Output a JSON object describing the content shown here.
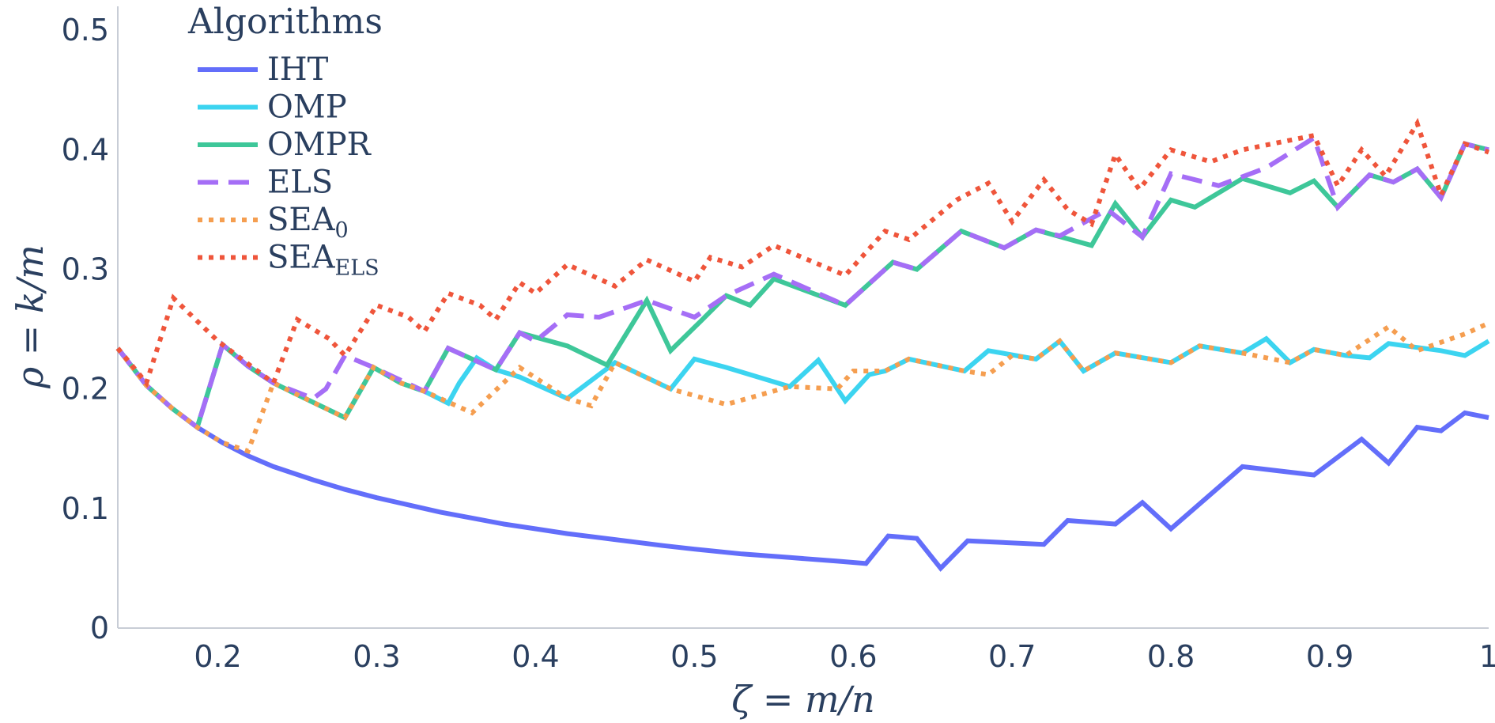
{
  "chart_data": {
    "type": "line",
    "title": "",
    "xlabel": "ζ = m/n",
    "ylabel": "ρ = k/m",
    "xlim": [
      0.137,
      1.0
    ],
    "ylim": [
      0,
      0.52
    ],
    "x_ticks": [
      0.2,
      0.3,
      0.4,
      0.5,
      0.6,
      0.7,
      0.8,
      0.9,
      1.0
    ],
    "x_tick_labels": [
      "0.2",
      "0.3",
      "0.4",
      "0.5",
      "0.6",
      "0.7",
      "0.8",
      "0.9",
      "1"
    ],
    "y_ticks": [
      0,
      0.1,
      0.2,
      0.3,
      0.4,
      0.5
    ],
    "y_tick_labels": [
      "0",
      "0.1",
      "0.2",
      "0.3",
      "0.4",
      "0.5"
    ],
    "grid": false,
    "legend": {
      "title": "Algorithms",
      "placement": "top-left"
    },
    "series": [
      {
        "name": "IHT",
        "name_sub": "",
        "color": "#636efa",
        "dash": "solid",
        "points": [
          [
            0.137,
            0.234
          ],
          [
            0.155,
            0.203
          ],
          [
            0.171,
            0.184
          ],
          [
            0.187,
            0.168
          ],
          [
            0.203,
            0.155
          ],
          [
            0.219,
            0.144
          ],
          [
            0.235,
            0.135
          ],
          [
            0.26,
            0.124
          ],
          [
            0.28,
            0.116
          ],
          [
            0.3,
            0.109
          ],
          [
            0.32,
            0.103
          ],
          [
            0.34,
            0.097
          ],
          [
            0.36,
            0.092
          ],
          [
            0.38,
            0.087
          ],
          [
            0.4,
            0.083
          ],
          [
            0.42,
            0.079
          ],
          [
            0.45,
            0.074
          ],
          [
            0.48,
            0.069
          ],
          [
            0.5,
            0.066
          ],
          [
            0.53,
            0.062
          ],
          [
            0.56,
            0.059
          ],
          [
            0.59,
            0.056
          ],
          [
            0.608,
            0.054
          ],
          [
            0.622,
            0.077
          ],
          [
            0.64,
            0.075
          ],
          [
            0.655,
            0.05
          ],
          [
            0.672,
            0.073
          ],
          [
            0.72,
            0.07
          ],
          [
            0.735,
            0.09
          ],
          [
            0.765,
            0.087
          ],
          [
            0.782,
            0.105
          ],
          [
            0.8,
            0.083
          ],
          [
            0.845,
            0.135
          ],
          [
            0.89,
            0.128
          ],
          [
            0.92,
            0.158
          ],
          [
            0.937,
            0.138
          ],
          [
            0.955,
            0.168
          ],
          [
            0.97,
            0.165
          ],
          [
            0.985,
            0.18
          ],
          [
            1.0,
            0.176
          ]
        ]
      },
      {
        "name": "OMP",
        "name_sub": "",
        "color": "#3cd4f0",
        "dash": "solid",
        "points": [
          [
            0.137,
            0.234
          ],
          [
            0.155,
            0.203
          ],
          [
            0.171,
            0.184
          ],
          [
            0.187,
            0.168
          ],
          [
            0.203,
            0.237
          ],
          [
            0.219,
            0.219
          ],
          [
            0.235,
            0.205
          ],
          [
            0.255,
            0.192
          ],
          [
            0.28,
            0.176
          ],
          [
            0.298,
            0.218
          ],
          [
            0.315,
            0.205
          ],
          [
            0.33,
            0.198
          ],
          [
            0.345,
            0.188
          ],
          [
            0.352,
            0.205
          ],
          [
            0.363,
            0.226
          ],
          [
            0.375,
            0.216
          ],
          [
            0.39,
            0.21
          ],
          [
            0.42,
            0.192
          ],
          [
            0.45,
            0.222
          ],
          [
            0.485,
            0.2
          ],
          [
            0.5,
            0.225
          ],
          [
            0.52,
            0.218
          ],
          [
            0.56,
            0.202
          ],
          [
            0.578,
            0.224
          ],
          [
            0.595,
            0.19
          ],
          [
            0.61,
            0.212
          ],
          [
            0.62,
            0.215
          ],
          [
            0.635,
            0.225
          ],
          [
            0.67,
            0.215
          ],
          [
            0.685,
            0.232
          ],
          [
            0.715,
            0.225
          ],
          [
            0.73,
            0.24
          ],
          [
            0.745,
            0.215
          ],
          [
            0.765,
            0.23
          ],
          [
            0.8,
            0.222
          ],
          [
            0.818,
            0.236
          ],
          [
            0.845,
            0.23
          ],
          [
            0.86,
            0.242
          ],
          [
            0.875,
            0.222
          ],
          [
            0.89,
            0.233
          ],
          [
            0.91,
            0.228
          ],
          [
            0.925,
            0.226
          ],
          [
            0.937,
            0.238
          ],
          [
            0.97,
            0.232
          ],
          [
            0.985,
            0.228
          ],
          [
            1.0,
            0.24
          ]
        ]
      },
      {
        "name": "OMPR",
        "name_sub": "",
        "color": "#3ec799",
        "dash": "solid",
        "points": [
          [
            0.137,
            0.234
          ],
          [
            0.155,
            0.203
          ],
          [
            0.171,
            0.184
          ],
          [
            0.187,
            0.168
          ],
          [
            0.203,
            0.237
          ],
          [
            0.219,
            0.219
          ],
          [
            0.235,
            0.205
          ],
          [
            0.255,
            0.192
          ],
          [
            0.28,
            0.176
          ],
          [
            0.298,
            0.218
          ],
          [
            0.315,
            0.205
          ],
          [
            0.33,
            0.198
          ],
          [
            0.345,
            0.234
          ],
          [
            0.375,
            0.216
          ],
          [
            0.39,
            0.247
          ],
          [
            0.42,
            0.236
          ],
          [
            0.445,
            0.22
          ],
          [
            0.47,
            0.274
          ],
          [
            0.485,
            0.232
          ],
          [
            0.505,
            0.258
          ],
          [
            0.52,
            0.278
          ],
          [
            0.535,
            0.27
          ],
          [
            0.55,
            0.292
          ],
          [
            0.595,
            0.27
          ],
          [
            0.625,
            0.306
          ],
          [
            0.64,
            0.3
          ],
          [
            0.668,
            0.332
          ],
          [
            0.695,
            0.318
          ],
          [
            0.715,
            0.333
          ],
          [
            0.75,
            0.32
          ],
          [
            0.765,
            0.355
          ],
          [
            0.782,
            0.327
          ],
          [
            0.8,
            0.358
          ],
          [
            0.815,
            0.352
          ],
          [
            0.845,
            0.376
          ],
          [
            0.875,
            0.364
          ],
          [
            0.89,
            0.374
          ],
          [
            0.905,
            0.352
          ],
          [
            0.925,
            0.379
          ],
          [
            0.94,
            0.373
          ],
          [
            0.955,
            0.384
          ],
          [
            0.97,
            0.36
          ],
          [
            0.985,
            0.405
          ],
          [
            1.0,
            0.4
          ]
        ]
      },
      {
        "name": "ELS",
        "name_sub": "",
        "color": "#a56ef6",
        "dash": "dashed",
        "points": [
          [
            0.137,
            0.234
          ],
          [
            0.155,
            0.203
          ],
          [
            0.171,
            0.184
          ],
          [
            0.187,
            0.168
          ],
          [
            0.203,
            0.237
          ],
          [
            0.219,
            0.219
          ],
          [
            0.235,
            0.205
          ],
          [
            0.26,
            0.192
          ],
          [
            0.268,
            0.2
          ],
          [
            0.28,
            0.228
          ],
          [
            0.298,
            0.218
          ],
          [
            0.33,
            0.198
          ],
          [
            0.345,
            0.234
          ],
          [
            0.375,
            0.216
          ],
          [
            0.39,
            0.247
          ],
          [
            0.4,
            0.24
          ],
          [
            0.42,
            0.262
          ],
          [
            0.44,
            0.26
          ],
          [
            0.47,
            0.274
          ],
          [
            0.5,
            0.26
          ],
          [
            0.52,
            0.278
          ],
          [
            0.55,
            0.296
          ],
          [
            0.595,
            0.27
          ],
          [
            0.625,
            0.306
          ],
          [
            0.64,
            0.3
          ],
          [
            0.668,
            0.332
          ],
          [
            0.695,
            0.318
          ],
          [
            0.715,
            0.333
          ],
          [
            0.73,
            0.328
          ],
          [
            0.76,
            0.35
          ],
          [
            0.782,
            0.327
          ],
          [
            0.8,
            0.38
          ],
          [
            0.83,
            0.37
          ],
          [
            0.86,
            0.385
          ],
          [
            0.89,
            0.41
          ],
          [
            0.905,
            0.352
          ],
          [
            0.925,
            0.379
          ],
          [
            0.94,
            0.373
          ],
          [
            0.955,
            0.384
          ],
          [
            0.97,
            0.36
          ],
          [
            0.985,
            0.405
          ],
          [
            1.0,
            0.4
          ]
        ]
      },
      {
        "name": "SEA",
        "name_sub": "0",
        "color": "#f59e50",
        "dash": "dotted",
        "points": [
          [
            0.137,
            0.234
          ],
          [
            0.155,
            0.203
          ],
          [
            0.171,
            0.184
          ],
          [
            0.187,
            0.168
          ],
          [
            0.203,
            0.155
          ],
          [
            0.219,
            0.148
          ],
          [
            0.235,
            0.205
          ],
          [
            0.255,
            0.192
          ],
          [
            0.28,
            0.176
          ],
          [
            0.298,
            0.218
          ],
          [
            0.315,
            0.205
          ],
          [
            0.33,
            0.198
          ],
          [
            0.36,
            0.18
          ],
          [
            0.39,
            0.218
          ],
          [
            0.42,
            0.192
          ],
          [
            0.435,
            0.186
          ],
          [
            0.45,
            0.222
          ],
          [
            0.485,
            0.2
          ],
          [
            0.52,
            0.187
          ],
          [
            0.56,
            0.202
          ],
          [
            0.59,
            0.2
          ],
          [
            0.6,
            0.215
          ],
          [
            0.62,
            0.215
          ],
          [
            0.635,
            0.225
          ],
          [
            0.67,
            0.215
          ],
          [
            0.685,
            0.212
          ],
          [
            0.7,
            0.228
          ],
          [
            0.715,
            0.225
          ],
          [
            0.73,
            0.24
          ],
          [
            0.745,
            0.215
          ],
          [
            0.765,
            0.23
          ],
          [
            0.8,
            0.222
          ],
          [
            0.818,
            0.236
          ],
          [
            0.845,
            0.23
          ],
          [
            0.875,
            0.222
          ],
          [
            0.89,
            0.233
          ],
          [
            0.91,
            0.228
          ],
          [
            0.937,
            0.252
          ],
          [
            0.955,
            0.232
          ],
          [
            0.985,
            0.246
          ],
          [
            1.0,
            0.255
          ]
        ]
      },
      {
        "name": "SEA",
        "name_sub": "ELS",
        "color": "#ef553b",
        "dash": "dotted",
        "points": [
          [
            0.137,
            0.234
          ],
          [
            0.155,
            0.205
          ],
          [
            0.172,
            0.276
          ],
          [
            0.2,
            0.24
          ],
          [
            0.22,
            0.22
          ],
          [
            0.235,
            0.205
          ],
          [
            0.25,
            0.258
          ],
          [
            0.27,
            0.242
          ],
          [
            0.28,
            0.228
          ],
          [
            0.3,
            0.27
          ],
          [
            0.32,
            0.26
          ],
          [
            0.33,
            0.248
          ],
          [
            0.345,
            0.28
          ],
          [
            0.365,
            0.27
          ],
          [
            0.375,
            0.258
          ],
          [
            0.39,
            0.289
          ],
          [
            0.4,
            0.28
          ],
          [
            0.42,
            0.304
          ],
          [
            0.45,
            0.286
          ],
          [
            0.47,
            0.308
          ],
          [
            0.5,
            0.29
          ],
          [
            0.51,
            0.31
          ],
          [
            0.53,
            0.302
          ],
          [
            0.55,
            0.32
          ],
          [
            0.595,
            0.295
          ],
          [
            0.62,
            0.332
          ],
          [
            0.635,
            0.325
          ],
          [
            0.665,
            0.358
          ],
          [
            0.685,
            0.372
          ],
          [
            0.7,
            0.34
          ],
          [
            0.72,
            0.375
          ],
          [
            0.735,
            0.35
          ],
          [
            0.75,
            0.338
          ],
          [
            0.765,
            0.396
          ],
          [
            0.78,
            0.367
          ],
          [
            0.8,
            0.4
          ],
          [
            0.825,
            0.39
          ],
          [
            0.845,
            0.4
          ],
          [
            0.89,
            0.412
          ],
          [
            0.905,
            0.37
          ],
          [
            0.92,
            0.4
          ],
          [
            0.935,
            0.378
          ],
          [
            0.955,
            0.422
          ],
          [
            0.97,
            0.362
          ],
          [
            0.985,
            0.405
          ],
          [
            1.0,
            0.398
          ]
        ]
      }
    ]
  }
}
